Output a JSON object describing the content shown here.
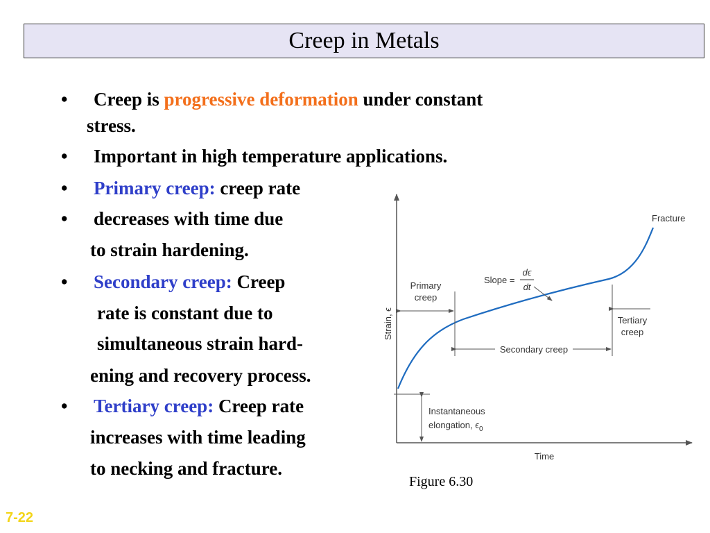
{
  "title": "Creep in Metals",
  "bullet_char": "•",
  "bullets": {
    "b1": {
      "pre": "Creep is ",
      "hl": "progressive deformation",
      "post": " under constant",
      "cont": "stress."
    },
    "b2": "Important in high temperature applications.",
    "b3": {
      "hl": "Primary creep:",
      "post": " creep rate"
    },
    "b4": {
      "line1": "decreases with time due",
      "line2": "to strain hardening."
    },
    "b5": {
      "hl": "Secondary creep:",
      "post": " Creep",
      "line2": "rate is constant due to",
      "line3": "simultaneous strain hard-",
      "line4": "ening and recovery process."
    },
    "b6": {
      "hl": "Tertiary creep:",
      "post": " Creep rate",
      "line2": "increases with time leading",
      "line3": "to necking and fracture."
    }
  },
  "figure": {
    "caption": "Figure 6.30",
    "labels": {
      "fracture": "Fracture",
      "slope": "Slope =",
      "slope_num": "dϵ",
      "slope_den": "dt",
      "primary_1": "Primary",
      "primary_2": "creep",
      "secondary": "Secondary creep",
      "tertiary_1": "Tertiary",
      "tertiary_2": "creep",
      "inst_1": "Instantaneous",
      "inst_2": "elongation, ϵ",
      "inst_sub": "0",
      "y_axis": "Strain, ϵ",
      "x_axis": "Time"
    },
    "curve_color": "#1f6cc0",
    "axis_color": "#555555"
  },
  "slide_number": "7-22",
  "colors": {
    "highlight_orange": "#f36f1b",
    "highlight_blue": "#2f3fc9",
    "title_bg": "#e6e4f4",
    "slide_number": "#f3d51a"
  }
}
